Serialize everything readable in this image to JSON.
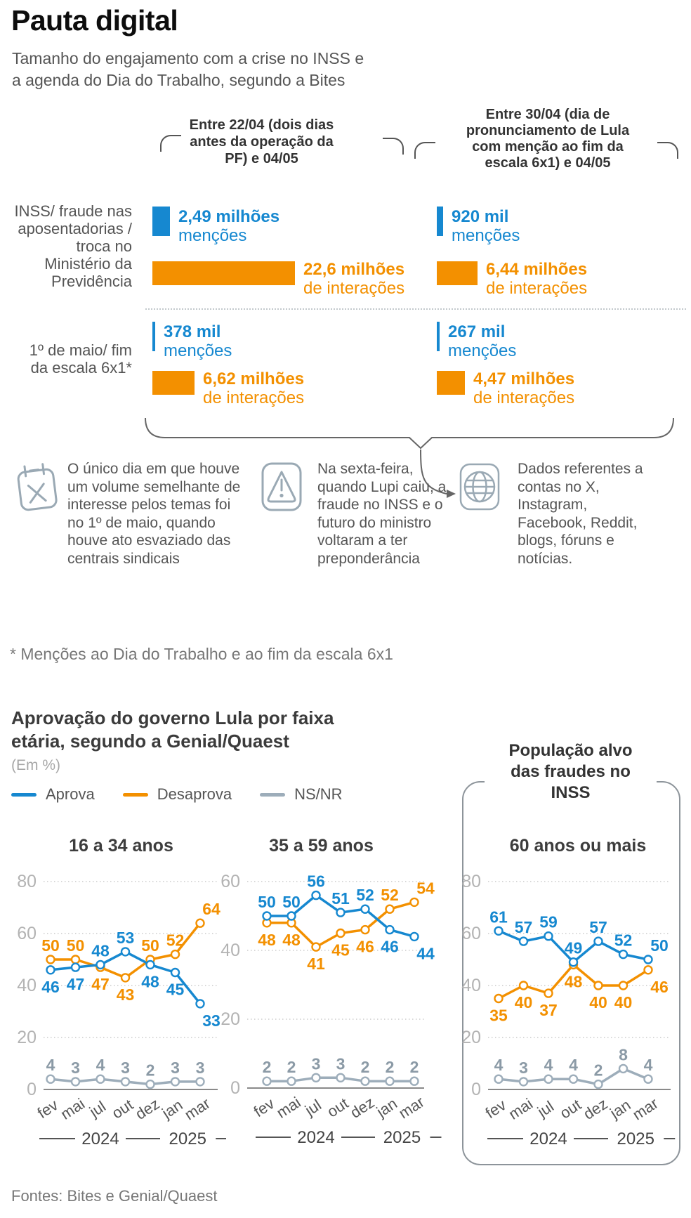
{
  "colors": {
    "blue": "#1688d0",
    "orange": "#f39000",
    "gray": "#9dadba",
    "axis": "#b3b3b3",
    "ns_label": "#8b9aa6"
  },
  "header": {
    "title": "Pauta digital",
    "subtitle": "Tamanho do engajamento com a crise no INSS e\na agenda do Dia do Trabalho, segundo a Bites"
  },
  "engagement": {
    "col_headers": [
      "Entre 22/04 (dois dias\nantes da operação da\nPF) e 04/05",
      "Entre 30/04 (dia de\npronunciamento de Lula\ncom menção ao fim da\nescala 6x1) e 04/05"
    ],
    "row_labels": [
      "INSS/ fraude nas\naposentadorias /\ntroca no\nMinistério da\nPrevidência",
      "1º de maio/ fim\nda escala 6x1*"
    ],
    "cells": [
      {
        "row": 0,
        "col": 0,
        "mentions_label": "2,49 milhões",
        "mentions_unit": "menções",
        "mentions_millions": 2.49,
        "interactions_label": "22,6 milhões",
        "interactions_unit": "de interações",
        "interactions_millions": 22.6
      },
      {
        "row": 0,
        "col": 1,
        "mentions_label": "920 mil",
        "mentions_unit": "menções",
        "mentions_millions": 0.92,
        "interactions_label": "6,44 milhões",
        "interactions_unit": "de interações",
        "interactions_millions": 6.44
      },
      {
        "row": 1,
        "col": 0,
        "mentions_label": "378 mil",
        "mentions_unit": "menções",
        "mentions_millions": 0.378,
        "interactions_label": "6,62 milhões",
        "interactions_unit": "de interações",
        "interactions_millions": 6.62
      },
      {
        "row": 1,
        "col": 1,
        "mentions_label": "267 mil",
        "mentions_unit": "menções",
        "mentions_millions": 0.267,
        "interactions_label": "4,47 milhões",
        "interactions_unit": "de interações",
        "interactions_millions": 4.47
      }
    ]
  },
  "notes": [
    {
      "icon": "calendar-x-icon",
      "text": "O único dia em que houve um volume semelhante de interesse pelos temas foi no 1º de maio, quando houve ato esvaziado das centrais sindicais"
    },
    {
      "icon": "warning-icon",
      "text": "Na sexta-feira, quando Lupi caiu, a fraude no INSS e o futuro do ministro voltaram a ter preponderância"
    },
    {
      "icon": "globe-icon",
      "text": "Dados referentes a contas no X, Instagram, Facebook, Reddit, blogs, fóruns e notícias."
    }
  ],
  "footnote": "* Menções ao Dia do Trabalho e ao fim da escala 6x1",
  "section2": {
    "title": "Aprovação do governo Lula por faixa\netária, segundo a Genial/Quaest",
    "unit_note": "(Em %)",
    "target_box_label": "População alvo\ndas fraudes no\nINSS"
  },
  "legend": [
    {
      "label": "Aprova",
      "color": "blue"
    },
    {
      "label": "Desaprova",
      "color": "orange"
    },
    {
      "label": "NS/NR",
      "color": "gray"
    }
  ],
  "chart_data": [
    {
      "type": "bar",
      "title": "Tamanho do engajamento com a crise no INSS e a agenda do Dia do Trabalho, segundo a Bites",
      "columns": [
        "Entre 22/04 (dois dias antes da operação da PF) e 04/05",
        "Entre 30/04 (dia de pronunciamento de Lula com menção ao fim da escala 6x1) e 04/05"
      ],
      "rows": [
        "INSS/ fraude nas aposentadorias / troca no Ministério da Previdência",
        "1º de maio/ fim da escala 6x1*"
      ],
      "values_millions": {
        "mencoes": [
          [
            2.49,
            0.92
          ],
          [
            0.378,
            0.267
          ]
        ],
        "interacoes": [
          [
            22.6,
            6.44
          ],
          [
            6.62,
            4.47
          ]
        ]
      }
    },
    {
      "type": "line",
      "title": "16 a 34 anos",
      "categories": [
        "fev",
        "mai",
        "jul",
        "out",
        "dez",
        "jan",
        "mar"
      ],
      "year_groups": [
        {
          "label": "2024",
          "from": 0,
          "to": 4
        },
        {
          "label": "2025",
          "from": 5,
          "to": 6
        }
      ],
      "yticks": [
        0,
        20,
        40,
        60,
        80
      ],
      "ylim": [
        0,
        88
      ],
      "series": [
        {
          "name": "Aprova",
          "color": "blue",
          "values": [
            46,
            47,
            48,
            53,
            48,
            45,
            33
          ]
        },
        {
          "name": "Desaprova",
          "color": "orange",
          "values": [
            50,
            50,
            47,
            43,
            50,
            52,
            64
          ]
        },
        {
          "name": "NS/NR",
          "color": "gray",
          "values": [
            4,
            3,
            4,
            3,
            2,
            3,
            3
          ]
        }
      ]
    },
    {
      "type": "line",
      "title": "35 a 59 anos",
      "categories": [
        "fev",
        "mai",
        "jul",
        "out",
        "dez",
        "jan",
        "mar"
      ],
      "year_groups": [
        {
          "label": "2024",
          "from": 0,
          "to": 4
        },
        {
          "label": "2025",
          "from": 5,
          "to": 6
        }
      ],
      "yticks": [
        0,
        20,
        40,
        60
      ],
      "ylim": [
        0,
        66
      ],
      "series": [
        {
          "name": "Aprova",
          "color": "blue",
          "values": [
            50,
            50,
            56,
            51,
            52,
            46,
            44
          ]
        },
        {
          "name": "Desaprova",
          "color": "orange",
          "values": [
            48,
            48,
            41,
            45,
            46,
            52,
            54
          ]
        },
        {
          "name": "NS/NR",
          "color": "gray",
          "values": [
            2,
            2,
            3,
            3,
            2,
            2,
            2
          ]
        }
      ]
    },
    {
      "type": "line",
      "title": "60 anos ou mais",
      "categories": [
        "fev",
        "mai",
        "jul",
        "out",
        "dez",
        "jan",
        "mar"
      ],
      "year_groups": [
        {
          "label": "2024",
          "from": 0,
          "to": 4
        },
        {
          "label": "2025",
          "from": 5,
          "to": 6
        }
      ],
      "yticks": [
        0,
        20,
        40,
        60,
        80
      ],
      "ylim": [
        0,
        88
      ],
      "series": [
        {
          "name": "Aprova",
          "color": "blue",
          "values": [
            61,
            57,
            59,
            49,
            57,
            52,
            50
          ]
        },
        {
          "name": "Desaprova",
          "color": "orange",
          "values": [
            35,
            40,
            37,
            48,
            40,
            40,
            46
          ]
        },
        {
          "name": "NS/NR",
          "color": "gray",
          "values": [
            4,
            3,
            4,
            4,
            2,
            8,
            4
          ]
        }
      ]
    }
  ],
  "footer": "Fontes: Bites e Genial/Quaest"
}
